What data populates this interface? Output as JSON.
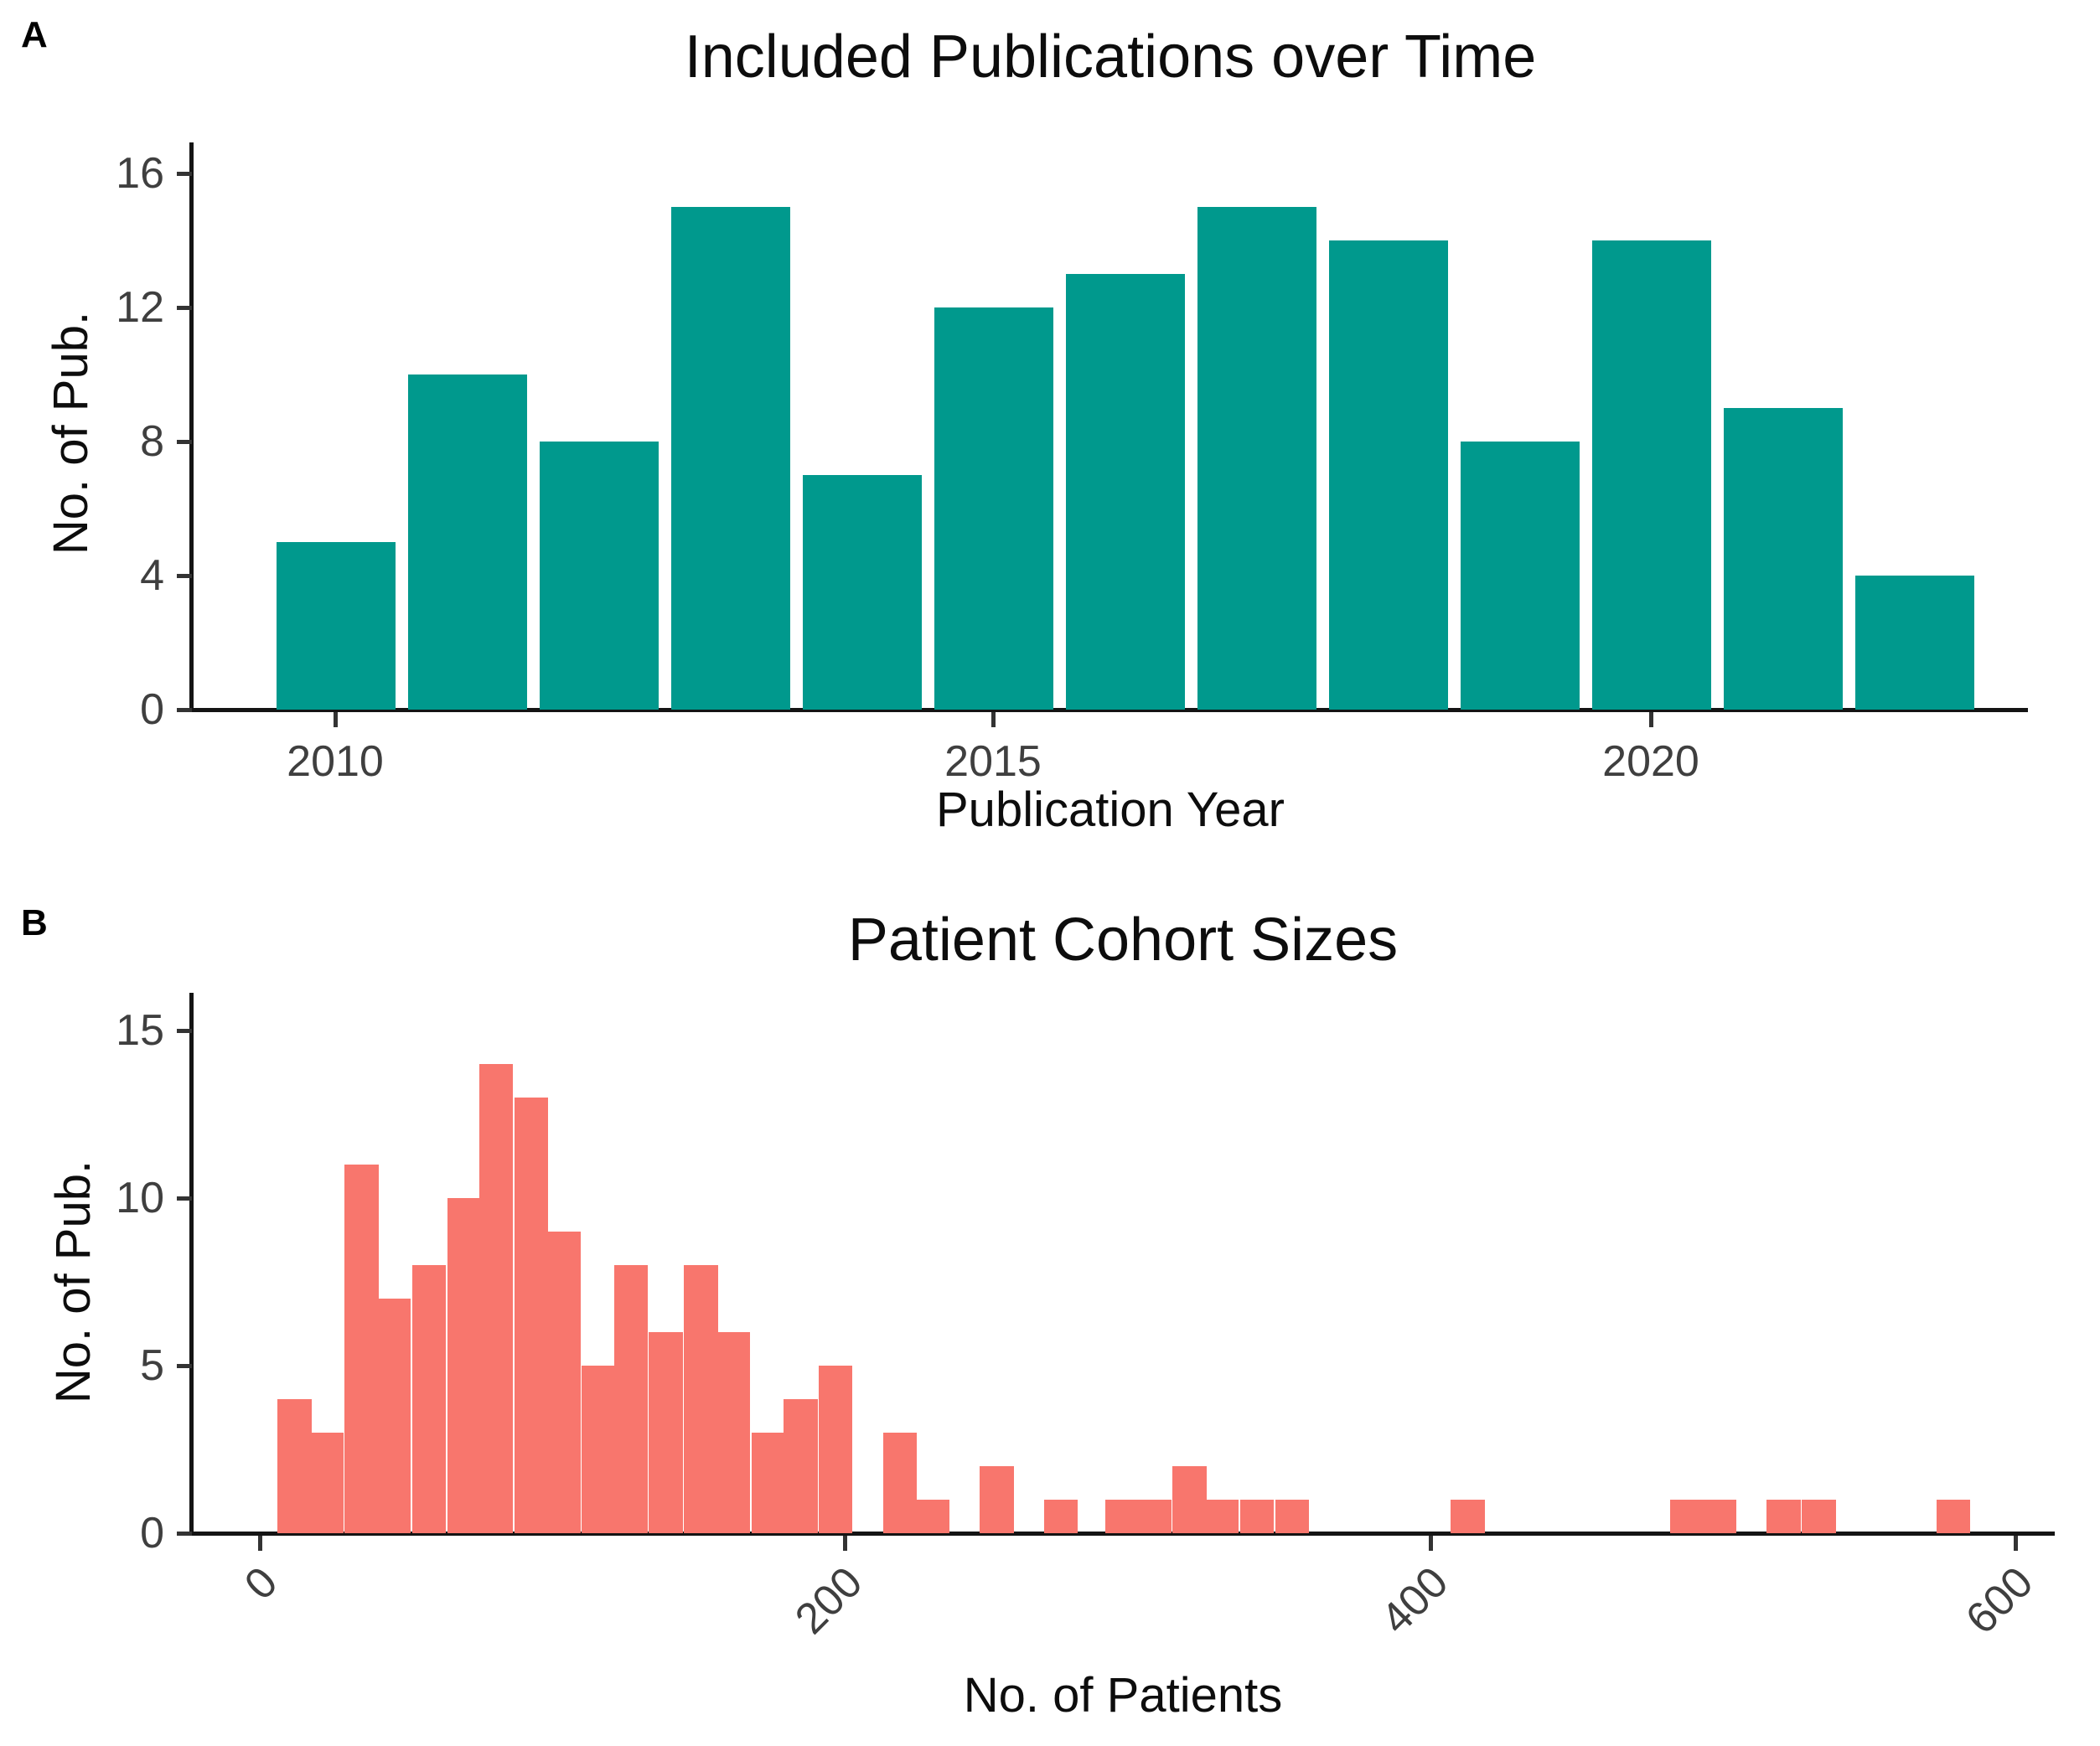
{
  "figure": {
    "background": "#ffffff",
    "panel_a_label": "A",
    "panel_b_label": "B"
  },
  "chart_data": [
    {
      "id": "included-publications-over-time",
      "type": "bar",
      "title": "Included Publications over Time",
      "xlabel": "Publication Year",
      "ylabel": "No. of Pub.",
      "bar_color": "#00998D",
      "categories": [
        2010,
        2011,
        2012,
        2013,
        2014,
        2015,
        2016,
        2017,
        2018,
        2019,
        2020,
        2021,
        2022
      ],
      "values": [
        5,
        10,
        8,
        15,
        7,
        12,
        13,
        15,
        14,
        8,
        14,
        9,
        4
      ],
      "ylim": [
        0,
        16
      ],
      "y_ticks": [
        0,
        4,
        8,
        12,
        16
      ],
      "x_tick_years": [
        2010,
        2015,
        2020
      ],
      "x_tick_labels": [
        "2010",
        "2015",
        "2020"
      ],
      "grid": false,
      "legend": "none"
    },
    {
      "id": "patient-cohort-sizes",
      "type": "histogram",
      "title": "Patient Cohort Sizes",
      "xlabel": "No. of Patients",
      "ylabel": "No. of Pub.",
      "bar_color": "#F8766D",
      "xlim": [
        0,
        615
      ],
      "ylim": [
        0,
        15
      ],
      "y_ticks": [
        0,
        5,
        10,
        15
      ],
      "x_ticks": [
        0,
        200,
        400,
        600
      ],
      "x_tick_labels": [
        "0",
        "200",
        "400",
        "600"
      ],
      "bin_width": 11.6,
      "bins": [
        {
          "x": 6,
          "n": 4
        },
        {
          "x": 17,
          "n": 3
        },
        {
          "x": 29,
          "n": 11
        },
        {
          "x": 40,
          "n": 7
        },
        {
          "x": 52,
          "n": 8
        },
        {
          "x": 64,
          "n": 10
        },
        {
          "x": 75,
          "n": 14
        },
        {
          "x": 87,
          "n": 13
        },
        {
          "x": 98,
          "n": 9
        },
        {
          "x": 110,
          "n": 5
        },
        {
          "x": 121,
          "n": 8
        },
        {
          "x": 133,
          "n": 6
        },
        {
          "x": 145,
          "n": 8
        },
        {
          "x": 156,
          "n": 6
        },
        {
          "x": 168,
          "n": 3
        },
        {
          "x": 179,
          "n": 4
        },
        {
          "x": 191,
          "n": 5
        },
        {
          "x": 213,
          "n": 3
        },
        {
          "x": 224,
          "n": 1
        },
        {
          "x": 246,
          "n": 2
        },
        {
          "x": 268,
          "n": 1
        },
        {
          "x": 289,
          "n": 1
        },
        {
          "x": 300,
          "n": 1
        },
        {
          "x": 312,
          "n": 2
        },
        {
          "x": 323,
          "n": 1
        },
        {
          "x": 335,
          "n": 1
        },
        {
          "x": 347,
          "n": 1
        },
        {
          "x": 407,
          "n": 1
        },
        {
          "x": 482,
          "n": 1
        },
        {
          "x": 493,
          "n": 1
        },
        {
          "x": 515,
          "n": 1
        },
        {
          "x": 527,
          "n": 1
        },
        {
          "x": 573,
          "n": 1
        }
      ],
      "grid": false,
      "legend": "none"
    }
  ]
}
